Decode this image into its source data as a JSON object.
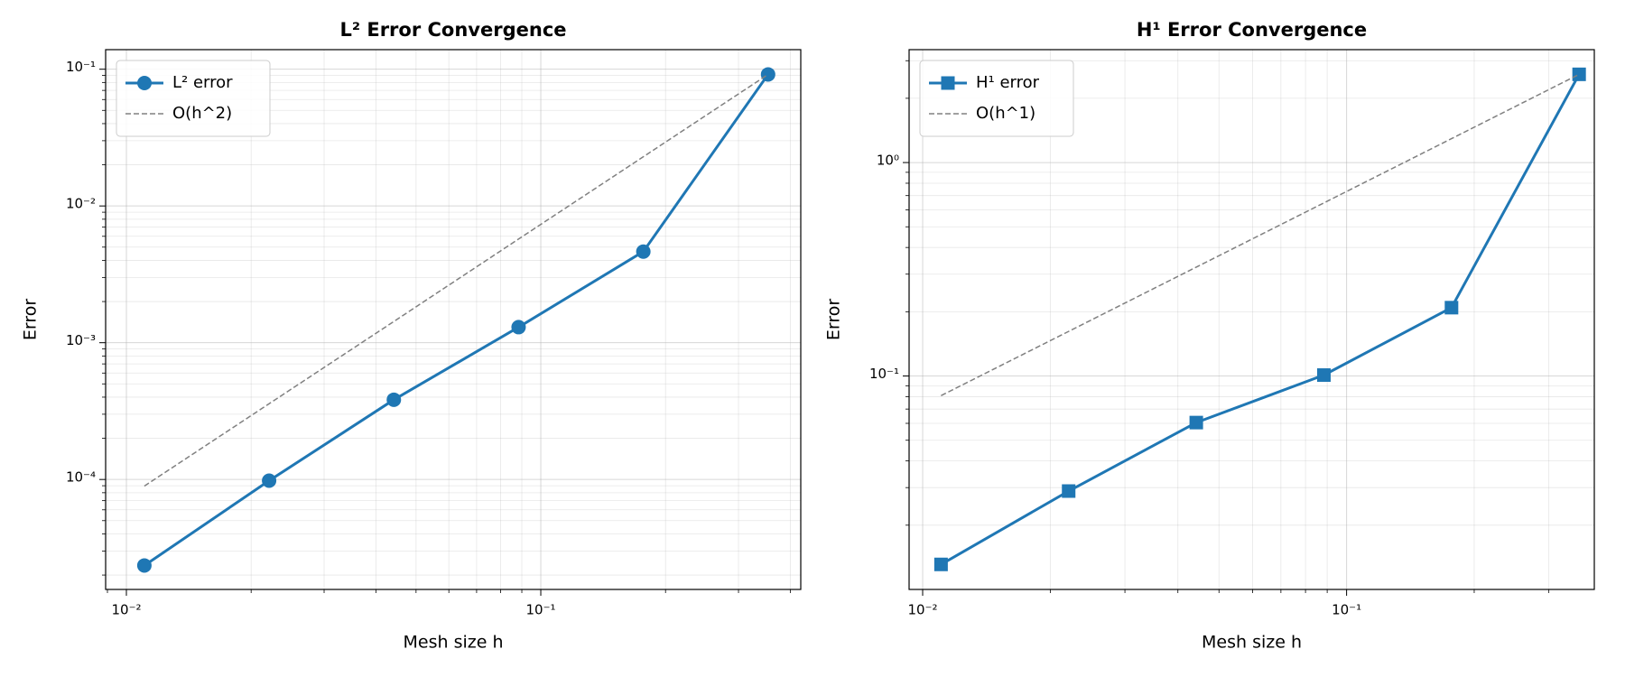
{
  "chart_data": [
    {
      "type": "line",
      "title": "L² Error Convergence",
      "xlabel": "Mesh size h",
      "ylabel": "Error",
      "x": [
        0.01105,
        0.0221,
        0.0442,
        0.0884,
        0.1768,
        0.3536
      ],
      "series": [
        {
          "name": "L² error",
          "color": "#1f77b4",
          "marker": "circle",
          "linestyle": "solid",
          "values": [
            2.35e-05,
            9.8e-05,
            0.000383,
            0.0013,
            0.00464,
            0.0916
          ]
        },
        {
          "name": "O(h^2)",
          "color": "#808080",
          "marker": "none",
          "linestyle": "dashed",
          "values": [
            8.95e-05,
            0.000358,
            0.00143,
            0.00573,
            0.0229,
            0.0916
          ]
        }
      ],
      "xscale": "log",
      "yscale": "log",
      "xlim": [
        0.00891,
        0.424
      ],
      "ylim": [
        1.57e-05,
        0.139
      ],
      "xticks": [
        {
          "value": 0.01,
          "label": "10⁻²"
        },
        {
          "value": 0.1,
          "label": "10⁻¹"
        }
      ],
      "yticks": [
        {
          "value": 0.0001,
          "label": "10⁻⁴"
        },
        {
          "value": 0.001,
          "label": "10⁻³"
        },
        {
          "value": 0.01,
          "label": "10⁻²"
        },
        {
          "value": 0.1,
          "label": "10⁻¹"
        }
      ],
      "grid": true,
      "minor_grid": true,
      "legend": "upper left"
    },
    {
      "type": "line",
      "title": "H¹ Error Convergence",
      "xlabel": "Mesh size h",
      "ylabel": "Error",
      "x": [
        0.01105,
        0.0221,
        0.0442,
        0.0884,
        0.1768,
        0.3536
      ],
      "series": [
        {
          "name": "H¹ error",
          "color": "#1f77b4",
          "marker": "square",
          "linestyle": "solid",
          "values": [
            0.0131,
            0.0289,
            0.0605,
            0.101,
            0.209,
            2.59
          ]
        },
        {
          "name": "O(h^1)",
          "color": "#808080",
          "marker": "none",
          "linestyle": "dashed",
          "values": [
            0.0809,
            0.1618,
            0.3236,
            0.647,
            1.294,
            2.59
          ]
        }
      ],
      "xscale": "log",
      "yscale": "log",
      "xlim": [
        0.00929,
        0.384
      ],
      "ylim": [
        0.01,
        3.38
      ],
      "xticks": [
        {
          "value": 0.01,
          "label": "10⁻²"
        },
        {
          "value": 0.1,
          "label": "10⁻¹"
        }
      ],
      "yticks": [
        {
          "value": 0.1,
          "label": "10⁻¹"
        },
        {
          "value": 1,
          "label": "10⁰"
        }
      ],
      "grid": true,
      "minor_grid": true,
      "legend": "upper left"
    }
  ]
}
